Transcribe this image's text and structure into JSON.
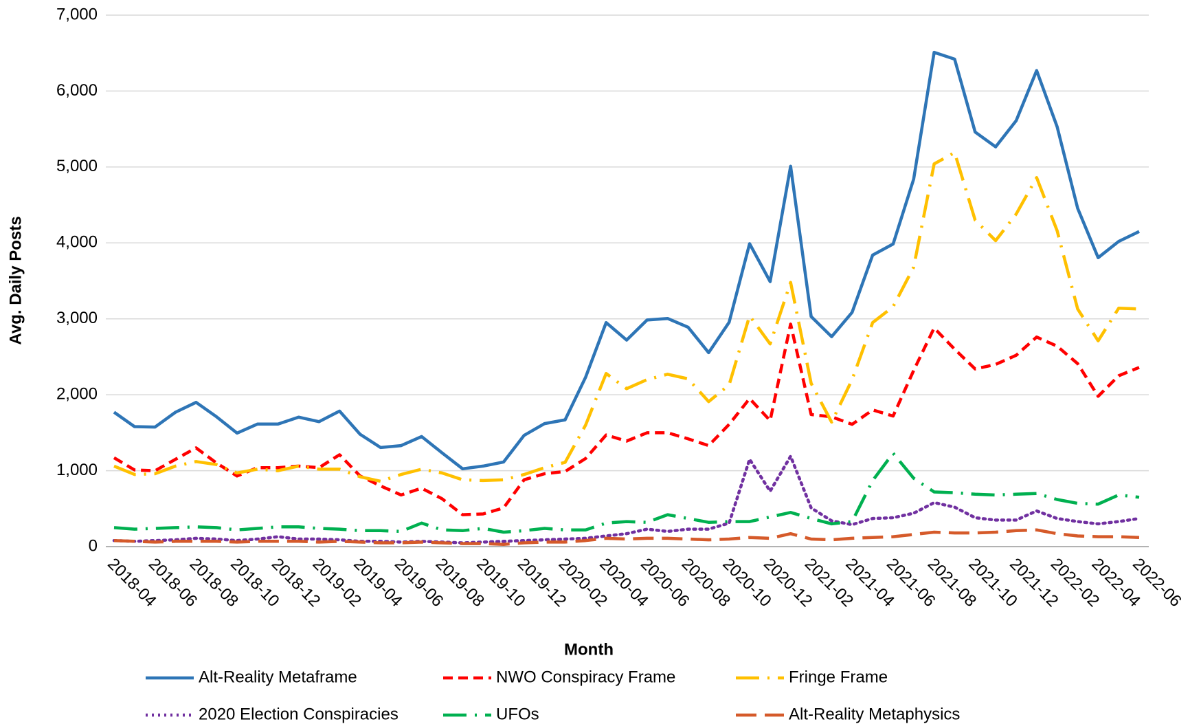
{
  "chart_data": {
    "type": "line",
    "x_label": "Month",
    "y_label": "Avg. Daily Posts",
    "categories": [
      "2018-04",
      null,
      "2018-06",
      null,
      "2018-08",
      null,
      "2018-10",
      null,
      "2018-12",
      null,
      "2019-02",
      null,
      "2019-04",
      null,
      "2019-06",
      null,
      "2019-08",
      null,
      "2019-10",
      null,
      "2019-12",
      null,
      "2020-02",
      null,
      "2020-04",
      null,
      "2020-06",
      null,
      "2020-08",
      null,
      "2020-10",
      null,
      "2020-12",
      null,
      "2021-02",
      null,
      "2021-04",
      null,
      "2021-06",
      null,
      "2021-08",
      null,
      "2021-10",
      null,
      "2021-12",
      null,
      "2022-02",
      null,
      "2022-04",
      null,
      "2022-06"
    ],
    "series": [
      {
        "name": "Alt-Reality Metaframe",
        "color": "#2e75b6",
        "style": "solid",
        "values": [
          1770,
          1580,
          1575,
          1770,
          1900,
          1710,
          1495,
          1615,
          1615,
          1705,
          1645,
          1785,
          1480,
          1305,
          1330,
          1450,
          1235,
          1025,
          1060,
          1115,
          1465,
          1620,
          1670,
          2230,
          2950,
          2720,
          2985,
          3005,
          2890,
          2555,
          2955,
          3990,
          3490,
          5010,
          3030,
          2765,
          3085,
          3840,
          3985,
          4840,
          6510,
          6420,
          5460,
          5265,
          5610,
          6270,
          5530,
          4455,
          3805,
          4020,
          4150
        ]
      },
      {
        "name": "NWO Conspiracy Frame",
        "color": "#ff0000",
        "style": "dash",
        "values": [
          1170,
          1010,
          1000,
          1150,
          1300,
          1100,
          930,
          1040,
          1040,
          1060,
          1040,
          1210,
          930,
          800,
          680,
          770,
          630,
          420,
          430,
          510,
          880,
          960,
          990,
          1160,
          1470,
          1390,
          1500,
          1500,
          1420,
          1330,
          1610,
          1950,
          1660,
          2930,
          1740,
          1710,
          1610,
          1800,
          1720,
          2320,
          2880,
          2600,
          2340,
          2400,
          2520,
          2760,
          2640,
          2410,
          1980,
          2250,
          2360
        ]
      },
      {
        "name": "Fringe Frame",
        "color": "#ffc000",
        "style": "long-dash-dot",
        "values": [
          1060,
          950,
          960,
          1060,
          1120,
          1080,
          970,
          1020,
          1000,
          1060,
          1020,
          1020,
          920,
          860,
          950,
          1020,
          970,
          880,
          870,
          880,
          950,
          1040,
          1110,
          1600,
          2280,
          2080,
          2200,
          2270,
          2210,
          1910,
          2130,
          3040,
          2670,
          3480,
          2150,
          1640,
          2200,
          2950,
          3160,
          3680,
          5040,
          5190,
          4300,
          4030,
          4380,
          4860,
          4160,
          3130,
          2710,
          3140,
          3130
        ]
      },
      {
        "name": "2020 Election Conspiracies",
        "color": "#7030a0",
        "style": "dot",
        "values": [
          80,
          70,
          80,
          90,
          110,
          100,
          80,
          100,
          130,
          100,
          100,
          90,
          70,
          70,
          60,
          70,
          60,
          50,
          60,
          70,
          80,
          90,
          100,
          110,
          140,
          170,
          230,
          200,
          230,
          230,
          310,
          1150,
          730,
          1190,
          510,
          340,
          290,
          370,
          380,
          440,
          580,
          520,
          380,
          350,
          350,
          470,
          370,
          330,
          300,
          330,
          370
        ]
      },
      {
        "name": "UFOs",
        "color": "#00b050",
        "style": "long-dash-dot",
        "values": [
          250,
          230,
          240,
          250,
          260,
          250,
          220,
          240,
          260,
          260,
          240,
          230,
          210,
          210,
          200,
          310,
          220,
          210,
          240,
          190,
          210,
          240,
          220,
          220,
          310,
          330,
          320,
          420,
          370,
          320,
          330,
          330,
          390,
          450,
          370,
          300,
          330,
          870,
          1230,
          900,
          720,
          710,
          690,
          680,
          690,
          700,
          620,
          570,
          560,
          680,
          650
        ]
      },
      {
        "name": "Alt-Reality Metaphysics",
        "color": "#d55a2a",
        "style": "long-dash",
        "values": [
          80,
          70,
          60,
          70,
          70,
          70,
          60,
          70,
          70,
          70,
          60,
          70,
          60,
          50,
          50,
          60,
          50,
          40,
          40,
          30,
          50,
          60,
          60,
          80,
          110,
          100,
          110,
          110,
          100,
          90,
          100,
          120,
          110,
          170,
          100,
          90,
          110,
          120,
          130,
          160,
          190,
          180,
          180,
          190,
          210,
          220,
          170,
          140,
          130,
          130,
          120
        ]
      }
    ],
    "ylim": [
      0,
      7000
    ],
    "yticks": [
      0,
      {
        "value": 1000,
        "label": "1,000"
      },
      {
        "value": 2000,
        "label": "2,000"
      },
      {
        "value": 3000,
        "label": "3,000"
      },
      {
        "value": 4000,
        "label": "4,000"
      },
      {
        "value": 5000,
        "label": "5,000"
      },
      {
        "value": 6000,
        "label": "6,000"
      },
      {
        "value": 7000,
        "label": "7,000"
      }
    ],
    "grid": true
  }
}
